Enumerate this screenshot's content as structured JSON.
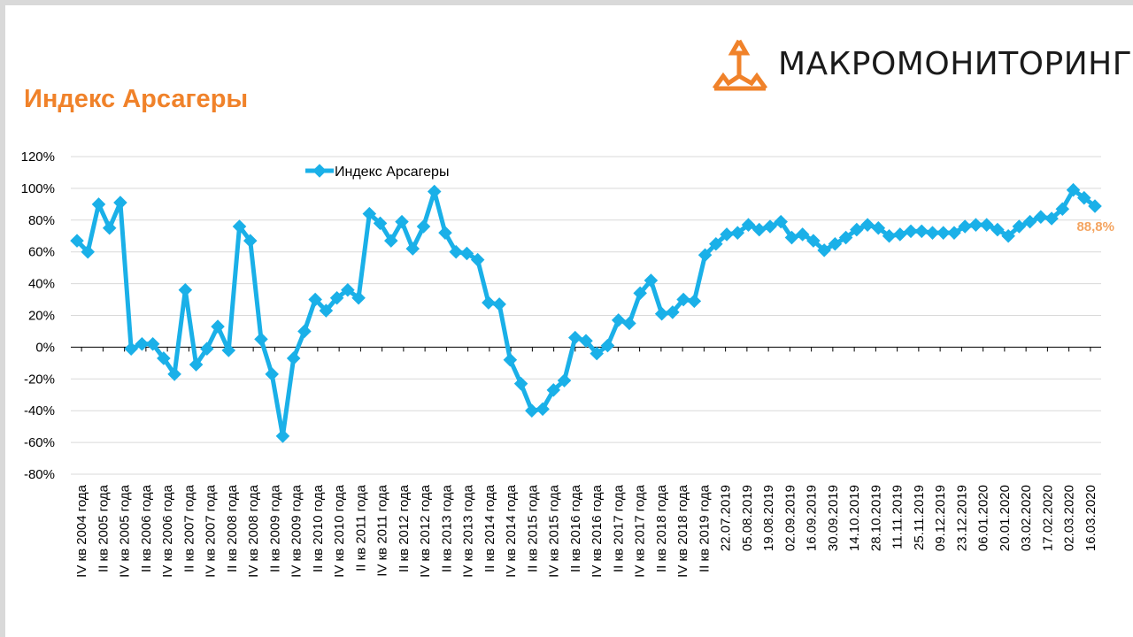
{
  "page": {
    "title": "Индекс Арсагеры"
  },
  "logo": {
    "text": "МАКРОМОНИТОРИНГ",
    "icon": "macromonitoring-triangle-icon",
    "color": "#f0822a"
  },
  "colors": {
    "line": "#1ab0e8",
    "title": "#f0822a",
    "last_label": "#f4a460",
    "grid": "#d9d9d9"
  },
  "chart_data": {
    "type": "line",
    "ylim": [
      -80,
      120
    ],
    "y_ticks": [
      "120%",
      "100%",
      "80%",
      "60%",
      "40%",
      "20%",
      "0%",
      "-20%",
      "-40%",
      "-60%",
      "-80%"
    ],
    "y_tick_values": [
      120,
      100,
      80,
      60,
      40,
      20,
      0,
      -20,
      -40,
      -60,
      -80
    ],
    "legend": {
      "label": "Индекс Арсагеры",
      "placement": "top"
    },
    "grid": true,
    "x_labels": [
      "IV кв 2004 года",
      "II кв 2005 года",
      "IV кв 2005 года",
      "II кв 2006 года",
      "IV кв 2006 года",
      "II кв 2007 года",
      "IV кв 2007 года",
      "II кв 2008 года",
      "IV кв 2008 года",
      "II кв 2009 года",
      "IV кв 2009 года",
      "II кв 2010 года",
      "IV кв 2010 года",
      "II кв 2011 года",
      "IV кв 2011 года",
      "II кв 2012 года",
      "IV кв 2012 года",
      "II кв 2013 года",
      "IV кв 2013 года",
      "II кв 2014 года",
      "IV кв 2014 года",
      "II кв 2015 года",
      "IV кв 2015 года",
      "II кв 2016 года",
      "IV кв 2016 года",
      "II кв 2017 года",
      "IV кв 2017 года",
      "II кв 2018 года",
      "IV кв 2018 года",
      "II кв 2019 года",
      "22.07.2019",
      "05.08.2019",
      "19.08.2019",
      "02.09.2019",
      "16.09.2019",
      "30.09.2019",
      "14.10.2019",
      "28.10.2019",
      "11.11.2019",
      "25.11.2019",
      "09.12.2019",
      "23.12.2019",
      "06.01.2020",
      "20.01.2020",
      "03.02.2020",
      "17.02.2020",
      "02.03.2020",
      "16.03.2020"
    ],
    "series": [
      {
        "name": "Индекс Арсагеры",
        "values": [
          67,
          60,
          90,
          75,
          91,
          -1,
          2,
          2,
          -7,
          -17,
          36,
          -11,
          -1,
          13,
          -2,
          76,
          67,
          5,
          -17,
          -56,
          -7,
          10,
          30,
          23,
          31,
          36,
          31,
          84,
          78,
          67,
          79,
          62,
          76,
          98,
          72,
          60,
          59,
          55,
          28,
          27,
          -8,
          -23,
          -40,
          -39,
          -27,
          -21,
          6,
          4,
          -4,
          1,
          17,
          15,
          34,
          42,
          21,
          22,
          30,
          29,
          58,
          65,
          71,
          72,
          77,
          74,
          76,
          79,
          69,
          71,
          67,
          61,
          65,
          69,
          74,
          77,
          75,
          70,
          71,
          73,
          73,
          72,
          72,
          72,
          76,
          77,
          77,
          74,
          70,
          76,
          79,
          82,
          81,
          87,
          99,
          94,
          88.8
        ]
      }
    ],
    "last_value_label": "88,8%"
  }
}
